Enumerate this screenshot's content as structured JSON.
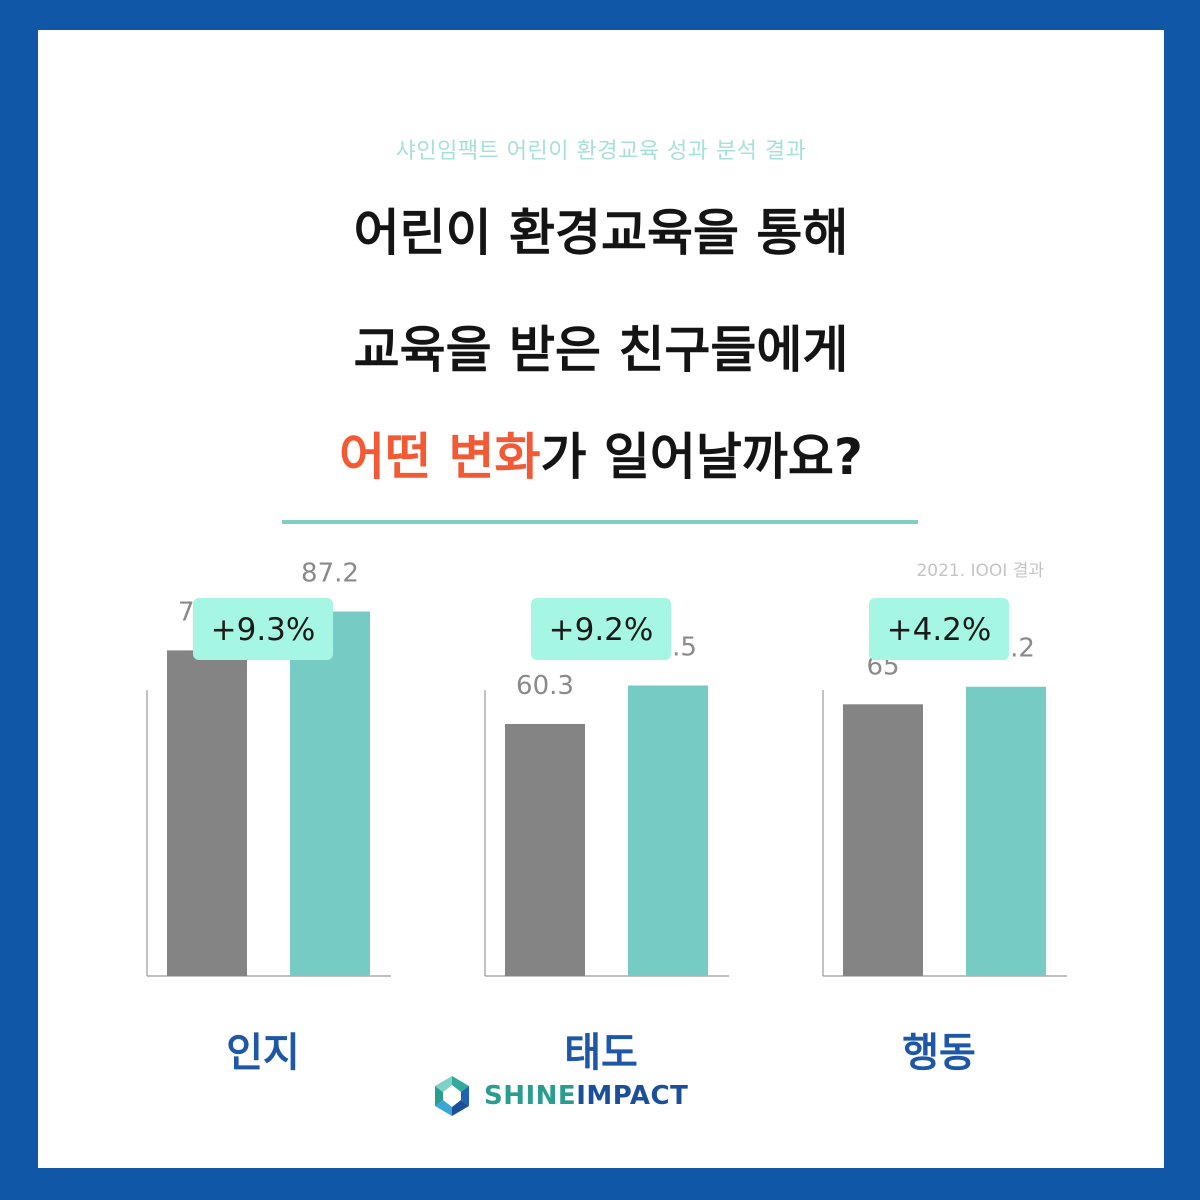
{
  "header": {
    "subtitle": "샤인임팩트 어린이 환경교육 성과 분석 결과",
    "line1": "어린이 환경교육을 통해",
    "line2": "교육을 받은 친구들에게",
    "line3_highlight": "어떤 변화",
    "line3_rest": "가 일어날까요?"
  },
  "source_note": "2021. IOOI 결과",
  "colors": {
    "background": "#1157a7",
    "before_bar": "#848484",
    "after_bar": "#76cbc4",
    "badge": "#a5f7e4",
    "highlight": "#f25a36",
    "category_label": "#1e57a6"
  },
  "chart_data": {
    "type": "bar",
    "categories": [
      "인지",
      "태도",
      "행동"
    ],
    "series": [
      {
        "values": [
          77.9,
          60.3,
          65
        ]
      },
      {
        "values": [
          87.2,
          69.5,
          69.2
        ]
      }
    ],
    "changes": [
      "+9.3%",
      "+9.2%",
      "+4.2%"
    ],
    "value_labels_before": [
      "77.9",
      "60.3",
      "65"
    ],
    "value_labels_after": [
      "87.2",
      "69.5",
      "69.2"
    ],
    "title": "",
    "xlabel": "",
    "ylabel": "",
    "ylim": [
      0,
      100
    ],
    "grid": false
  },
  "brand": {
    "name_a": "SHINE",
    "name_b": "IMPACT",
    "logo_icon": "shine-impact-logo-icon"
  }
}
